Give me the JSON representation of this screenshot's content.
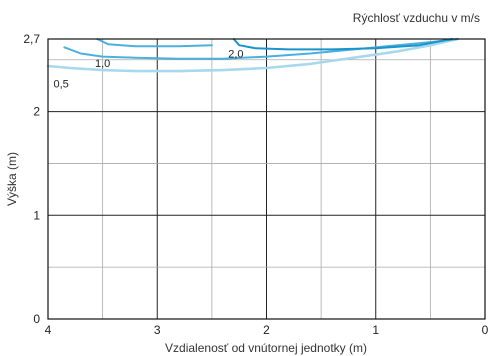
{
  "chart_data": {
    "type": "line",
    "title": "",
    "legend_title": "Rýchlosť vzduchu v m/s",
    "xlabel": "Vzdialenosť od vnútornej jednotky (m)",
    "ylabel": "Výška (m)",
    "xlim": [
      4,
      0
    ],
    "ylim": [
      0,
      2.7
    ],
    "x_ticks": [
      4,
      3,
      2,
      1,
      0
    ],
    "x_tick_labels": [
      "4",
      "3",
      "2",
      "1",
      "0"
    ],
    "y_ticks": [
      0,
      1,
      2,
      2.7
    ],
    "y_tick_labels": [
      "0",
      "1",
      "2",
      "2,7"
    ],
    "grid": true,
    "series": [
      {
        "name": "0,5",
        "color": "#a8d8ee",
        "x": [
          4.0,
          3.8,
          3.5,
          3.2,
          2.8,
          2.4,
          2.0,
          1.6,
          1.2,
          0.8,
          0.5,
          0.25
        ],
        "y": [
          2.44,
          2.42,
          2.4,
          2.39,
          2.39,
          2.4,
          2.42,
          2.46,
          2.52,
          2.58,
          2.64,
          2.7
        ]
      },
      {
        "name": "1,0",
        "color": "#4ab0dd",
        "x": [
          3.85,
          3.7,
          3.5,
          3.2,
          2.8,
          2.4,
          2.0,
          1.6,
          1.2,
          0.8,
          0.5,
          0.25
        ],
        "y": [
          2.62,
          2.56,
          2.53,
          2.52,
          2.51,
          2.51,
          2.53,
          2.56,
          2.6,
          2.64,
          2.67,
          2.7
        ]
      },
      {
        "name": "2,0",
        "color": "#1c93cc",
        "x": [
          2.3,
          2.25,
          2.1,
          1.8,
          1.4,
          1.0,
          0.6,
          0.3
        ],
        "y": [
          2.7,
          2.64,
          2.61,
          2.6,
          2.6,
          2.61,
          2.64,
          2.7
        ]
      },
      {
        "name": "",
        "color": "#4ab0dd",
        "x": [
          3.55,
          3.45,
          3.2,
          2.8,
          2.5
        ],
        "y": [
          2.7,
          2.65,
          2.63,
          2.63,
          2.64
        ]
      }
    ],
    "curve_labels": [
      {
        "text": "0,5",
        "x": 3.88,
        "y": 2.27
      },
      {
        "text": "1,0",
        "x": 3.5,
        "y": 2.47
      },
      {
        "text": "2,0",
        "x": 2.28,
        "y": 2.56
      }
    ]
  }
}
